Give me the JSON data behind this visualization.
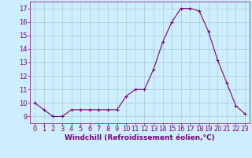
{
  "x": [
    0,
    1,
    2,
    3,
    4,
    5,
    6,
    7,
    8,
    9,
    10,
    11,
    12,
    13,
    14,
    15,
    16,
    17,
    18,
    19,
    20,
    21,
    22,
    23
  ],
  "y": [
    10.0,
    9.5,
    9.0,
    9.0,
    9.5,
    9.5,
    9.5,
    9.5,
    9.5,
    9.5,
    10.5,
    11.0,
    11.0,
    12.5,
    14.5,
    16.0,
    17.0,
    17.0,
    16.8,
    15.3,
    13.2,
    11.5,
    9.8,
    9.2
  ],
  "xlabel": "Windchill (Refroidissement éolien,°C)",
  "line_color": "#800080",
  "marker": "+",
  "marker_color": "#800080",
  "bg_color": "#cceeff",
  "grid_color": "#aacccc",
  "tick_color": "#800080",
  "label_color": "#800080",
  "xlim": [
    -0.5,
    23.5
  ],
  "ylim": [
    8.5,
    17.5
  ],
  "yticks": [
    9,
    10,
    11,
    12,
    13,
    14,
    15,
    16,
    17
  ],
  "xticks": [
    0,
    1,
    2,
    3,
    4,
    5,
    6,
    7,
    8,
    9,
    10,
    11,
    12,
    13,
    14,
    15,
    16,
    17,
    18,
    19,
    20,
    21,
    22,
    23
  ],
  "linewidth": 0.8,
  "markersize": 3,
  "tick_fontsize": 6,
  "xlabel_fontsize": 6.5
}
